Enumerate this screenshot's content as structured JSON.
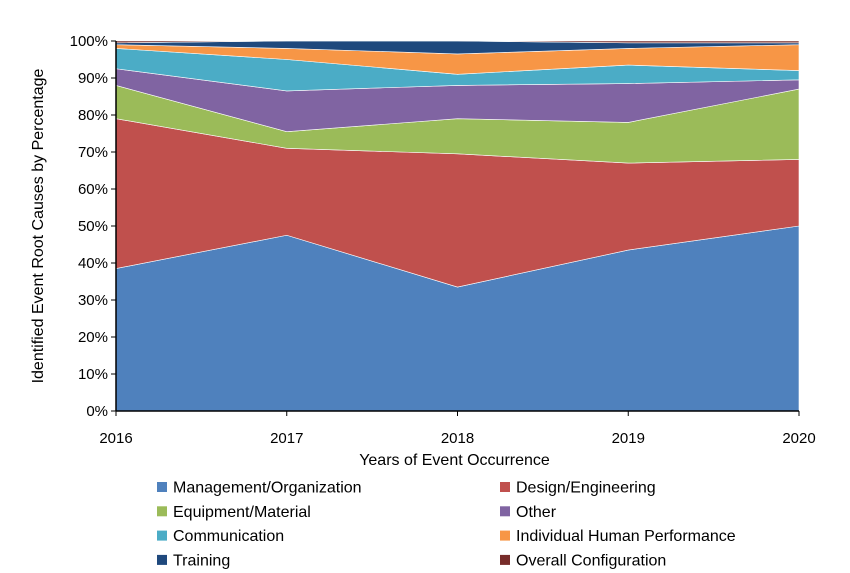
{
  "chart_data": {
    "type": "area",
    "stacked": true,
    "percent": true,
    "x": [
      "2016",
      "2017",
      "2018",
      "2019",
      "2020"
    ],
    "xlabel": "Years of Event Occurrence",
    "ylabel": "Identified Event Root Causes by Percentage",
    "ylim": [
      0,
      100
    ],
    "yticks": [
      "0%",
      "10%",
      "20%",
      "30%",
      "40%",
      "50%",
      "60%",
      "70%",
      "80%",
      "90%",
      "100%"
    ],
    "grid": false,
    "legend_position": "bottom",
    "series": [
      {
        "name": "Management/Organization",
        "color": "#4F81BD",
        "values": [
          38.5,
          47.5,
          33.5,
          43.5,
          50.0
        ]
      },
      {
        "name": "Design/Engineering",
        "color": "#C0504D",
        "values": [
          40.5,
          23.5,
          36.0,
          23.5,
          18.0
        ]
      },
      {
        "name": "Equipment/Material",
        "color": "#9BBB59",
        "values": [
          9.0,
          4.5,
          9.5,
          11.0,
          19.0
        ]
      },
      {
        "name": "Other",
        "color": "#8064A2",
        "values": [
          4.5,
          11.0,
          9.0,
          10.5,
          2.5
        ]
      },
      {
        "name": "Communication",
        "color": "#4BACC6",
        "values": [
          5.5,
          8.5,
          3.0,
          5.0,
          2.5
        ]
      },
      {
        "name": "Individual Human Performance",
        "color": "#F79646",
        "values": [
          1.0,
          3.0,
          5.5,
          4.5,
          7.0
        ]
      },
      {
        "name": "Training",
        "color": "#1F497D",
        "values": [
          0.5,
          2.0,
          3.5,
          1.5,
          0.5
        ]
      },
      {
        "name": "Overall Configuration",
        "color": "#772C2A",
        "values": [
          0.5,
          0.0,
          0.0,
          0.5,
          0.5
        ]
      }
    ]
  }
}
